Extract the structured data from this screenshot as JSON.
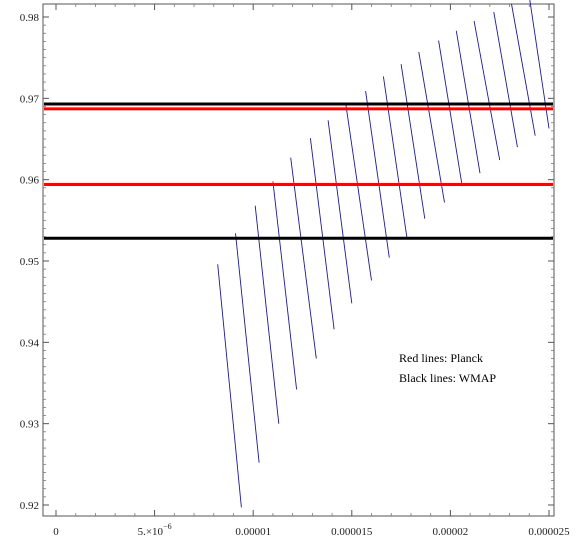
{
  "chart_data": {
    "type": "line",
    "title": "",
    "xlabel": "",
    "ylabel": "",
    "xlim": [
      0,
      2.5e-05
    ],
    "ylim": [
      0.918,
      0.981
    ],
    "grid": false,
    "x_ticks": [
      {
        "value": 0,
        "label": "0"
      },
      {
        "value": 5e-06,
        "label": "5.×10",
        "exp": "−6"
      },
      {
        "value": 1e-05,
        "label": "0.00001"
      },
      {
        "value": 1.5e-05,
        "label": "0.000015"
      },
      {
        "value": 2e-05,
        "label": "0.00002"
      },
      {
        "value": 2.5e-05,
        "label": "0.000025"
      }
    ],
    "y_ticks": [
      {
        "value": 0.92,
        "label": "0.92"
      },
      {
        "value": 0.93,
        "label": "0.93"
      },
      {
        "value": 0.94,
        "label": "0.94"
      },
      {
        "value": 0.95,
        "label": "0.95"
      },
      {
        "value": 0.96,
        "label": "0.96"
      },
      {
        "value": 0.97,
        "label": "0.97"
      },
      {
        "value": 0.98,
        "label": "0.98"
      }
    ],
    "hlines": [
      {
        "y": 0.9693,
        "color": "#000000"
      },
      {
        "y": 0.9687,
        "color": "#ff0000"
      },
      {
        "y": 0.9594,
        "color": "#ff0000"
      },
      {
        "y": 0.9528,
        "color": "#000000"
      }
    ],
    "series_color": "#1a1a99",
    "curves": [
      {
        "x": [
          8.2e-06,
          9.4e-06
        ],
        "y": [
          0.9496,
          0.9197
        ]
      },
      {
        "x": [
          9.1e-06,
          1.03e-05
        ],
        "y": [
          0.9534,
          0.9252
        ]
      },
      {
        "x": [
          1.01e-05,
          1.13e-05
        ],
        "y": [
          0.9568,
          0.93
        ]
      },
      {
        "x": [
          1.1e-05,
          1.22e-05
        ],
        "y": [
          0.9598,
          0.9342
        ]
      },
      {
        "x": [
          1.19e-05,
          1.32e-05
        ],
        "y": [
          0.9627,
          0.938
        ]
      },
      {
        "x": [
          1.29e-05,
          1.41e-05
        ],
        "y": [
          0.9651,
          0.9416
        ]
      },
      {
        "x": [
          1.38e-05,
          1.5e-05
        ],
        "y": [
          0.9673,
          0.9448
        ]
      },
      {
        "x": [
          1.47e-05,
          1.6e-05
        ],
        "y": [
          0.9692,
          0.9476
        ]
      },
      {
        "x": [
          1.57e-05,
          1.69e-05
        ],
        "y": [
          0.9709,
          0.9504
        ]
      },
      {
        "x": [
          1.66e-05,
          1.78e-05
        ],
        "y": [
          0.9727,
          0.9528
        ]
      },
      {
        "x": [
          1.75e-05,
          1.87e-05
        ],
        "y": [
          0.9742,
          0.9552
        ]
      },
      {
        "x": [
          1.84e-05,
          1.97e-05
        ],
        "y": [
          0.9757,
          0.9572
        ]
      },
      {
        "x": [
          1.94e-05,
          2.06e-05
        ],
        "y": [
          0.9771,
          0.9592
        ]
      },
      {
        "x": [
          2.03e-05,
          2.15e-05
        ],
        "y": [
          0.9783,
          0.9608
        ]
      },
      {
        "x": [
          2.12e-05,
          2.25e-05
        ],
        "y": [
          0.9795,
          0.9624
        ]
      },
      {
        "x": [
          2.22e-05,
          2.34e-05
        ],
        "y": [
          0.9806,
          0.964
        ]
      },
      {
        "x": [
          2.31e-05,
          2.43e-05
        ],
        "y": [
          0.9816,
          0.9654
        ]
      },
      {
        "x": [
          2.4e-05,
          2.5e-05
        ],
        "y": [
          0.9825,
          0.9663
        ]
      }
    ],
    "annotations": [
      "Red lines: Planck",
      "Black lines: WMAP"
    ]
  }
}
